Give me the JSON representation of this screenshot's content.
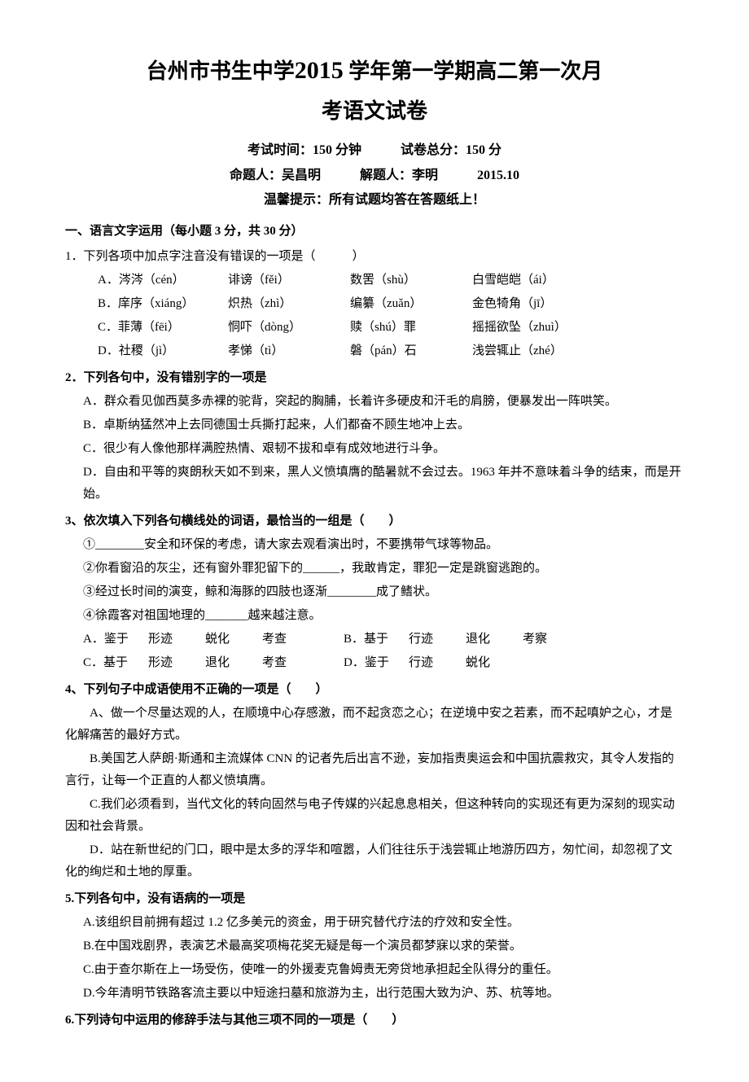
{
  "title": {
    "line1_prefix": "台州市书生中学",
    "line1_year": "2015",
    "line1_mid": " 学年第一学期",
    "line1_suffix": "高二第一次月",
    "line2": "考语文试卷"
  },
  "exam_info": {
    "time": "考试时间：150 分钟　　　试卷总分：150 分",
    "authors": "命题人：吴昌明　　　解题人：李明　　　2015.10",
    "hint": "温馨提示：所有试题均答在答题纸上！"
  },
  "section1_header": "一、语言文字运用（每小题 3 分，共 30 分）",
  "q1": {
    "stem": "1．下列各项中加点字注音没有错误的一项是（　　　）",
    "options": {
      "A": [
        "A．涔涔（cén）",
        "诽谤（fěi）",
        "数罟（shù）",
        "白雪皑皑（ái）"
      ],
      "B": [
        "B．庠序（xiáng）",
        "炽热（zhì）",
        "编纂（zuǎn）",
        "金色犄角（jī）"
      ],
      "C": [
        "C．菲薄（fēi）",
        "恫吓（dòng）",
        "赎（shú）罪",
        "摇摇欲坠（zhuì）"
      ],
      "D": [
        "D．社稷（jì）",
        "孝悌（tì）",
        "磐（pán）石",
        "浅尝辄止（zhé）"
      ]
    }
  },
  "q2": {
    "stem": "2．下列各句中，没有错别字的一项是",
    "options": {
      "A": "A．群众看见伽西莫多赤裸的驼背，突起的胸脯，长着许多硬皮和汗毛的肩膀，便暴发出一阵哄笑。",
      "B": "B．卓斯纳猛然冲上去同德国士兵撕打起来，人们都奋不顾生地冲上去。",
      "C": "C．很少有人像他那样满腔热情、艰韧不拔和卓有成效地进行斗争。",
      "D": "D．自由和平等的爽朗秋天如不到来，黑人义愤填膺的酷暑就不会过去。1963 年并不意味着斗争的结束，而是开始。"
    }
  },
  "q3": {
    "stem": "3、依次填入下列各句横线处的词语，最恰当的一组是（　　）",
    "items": {
      "1": "①________安全和环保的考虑，请大家去观看演出时，不要携带气球等物品。",
      "2": "②你看窗沿的灰尘，还有窗外罪犯留下的______，我敢肯定，罪犯一定是跳窗逃跑的。",
      "3": "③经过长时间的演变，鲸和海豚的四肢也逐渐________成了鳍状。",
      "4": "④徐霞客对祖国地理的_______越来越注意。"
    },
    "choices": {
      "A": [
        "A．鉴于",
        "形迹",
        "蜕化",
        "考查"
      ],
      "B": [
        "B．基于",
        "行迹",
        "退化",
        "考察"
      ],
      "C": [
        "C．基于",
        "形迹",
        "退化",
        "考查"
      ],
      "D": [
        "D．鉴于",
        "行迹",
        "蜕化",
        "考察"
      ]
    }
  },
  "q4": {
    "stem": "4、下列句子中成语使用不正确的一项是（　　）",
    "options": {
      "A": "A、做一个尽量达观的人，在顺境中心存感激，而不起贪恋之心；在逆境中安之若素，而不起嗔妒之心，才是化解痛苦的最好方式。",
      "B": "B.美国艺人萨朗·斯通和主流媒体 CNN 的记者先后出言不逊，妄加指责奥运会和中国抗震救灾，其令人发指的言行，让每一个正直的人都义愤填膺。",
      "C": "C.我们必须看到，当代文化的转向固然与电子传媒的兴起息息相关，但这种转向的实现还有更为深刻的现实动因和社会背景。",
      "D": "D．站在新世纪的门口，眼中是太多的浮华和喧嚣，人们往往乐于浅尝辄止地游历四方，匆忙间，却忽视了文化的绚烂和土地的厚重。"
    }
  },
  "q5": {
    "stem": "5.下列各句中，没有语病的一项是",
    "options": {
      "A": "A.该组织目前拥有超过 1.2 亿多美元的资金，用于研究替代疗法的疗效和安全性。",
      "B": "B.在中国戏剧界，表演艺术最高奖项梅花奖无疑是每一个演员都梦寐以求的荣誉。",
      "C": "C.由于查尔斯在上一场受伤，使唯一的外援麦克鲁姆责无旁贷地承担起全队得分的重任。",
      "D": "D.今年清明节铁路客流主要以中短途扫墓和旅游为主，出行范围大致为沪、苏、杭等地。"
    }
  },
  "q6": {
    "stem": "6.下列诗句中运用的修辞手法与其他三项不同的一项是（　　）"
  }
}
